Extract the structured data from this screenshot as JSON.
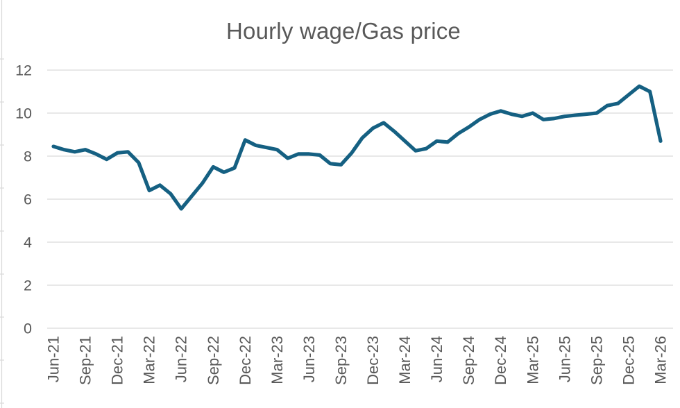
{
  "title": "Hourly wage/Gas price",
  "colors": {
    "line": "#156082",
    "grid": "#d9d9d9",
    "axis_text": "#595959",
    "background": "#ffffff",
    "edge_artifact": "#d9d9d9"
  },
  "chart_data": {
    "type": "line",
    "title": "Hourly wage/Gas price",
    "xlabel": "",
    "ylabel": "",
    "legend": "none",
    "grid": "horizontal",
    "ylim": [
      0,
      12
    ],
    "yticks": [
      0,
      2,
      4,
      6,
      8,
      10,
      12
    ],
    "x_tick_every": 3,
    "x_tick_labels": [
      "Jun-21",
      "Sep-21",
      "Dec-21",
      "Mar-22",
      "Jun-22",
      "Sep-22",
      "Dec-22",
      "Mar-23",
      "Jun-23",
      "Sep-23",
      "Dec-23",
      "Mar-24",
      "Jun-24",
      "Sep-24",
      "Dec-24",
      "Mar-25",
      "Jun-25",
      "Sep-25",
      "Dec-25",
      "Mar-26"
    ],
    "x": [
      "Jun-21",
      "Jul-21",
      "Aug-21",
      "Sep-21",
      "Oct-21",
      "Nov-21",
      "Dec-21",
      "Jan-22",
      "Feb-22",
      "Mar-22",
      "Apr-22",
      "May-22",
      "Jun-22",
      "Jul-22",
      "Aug-22",
      "Sep-22",
      "Oct-22",
      "Nov-22",
      "Dec-22",
      "Jan-23",
      "Feb-23",
      "Mar-23",
      "Apr-23",
      "May-23",
      "Jun-23",
      "Jul-23",
      "Aug-23",
      "Sep-23",
      "Oct-23",
      "Nov-23",
      "Dec-23",
      "Jan-24",
      "Feb-24",
      "Mar-24",
      "Apr-24",
      "May-24",
      "Jun-24",
      "Jul-24",
      "Aug-24",
      "Sep-24",
      "Oct-24",
      "Nov-24",
      "Dec-24",
      "Jan-25",
      "Feb-25",
      "Mar-25",
      "Apr-25",
      "May-25",
      "Jun-25",
      "Jul-25",
      "Aug-25",
      "Sep-25",
      "Oct-25",
      "Nov-25",
      "Dec-25",
      "Jan-26",
      "Feb-26",
      "Mar-26"
    ],
    "series": [
      {
        "name": "Hourly wage/Gas price",
        "values": [
          8.45,
          8.3,
          8.2,
          8.3,
          8.1,
          7.85,
          8.15,
          8.2,
          7.7,
          6.4,
          6.65,
          6.25,
          5.55,
          6.15,
          6.75,
          7.5,
          7.25,
          7.45,
          8.75,
          8.5,
          8.4,
          8.3,
          7.9,
          8.1,
          8.1,
          8.05,
          7.65,
          7.6,
          8.15,
          8.85,
          9.3,
          9.55,
          9.15,
          8.7,
          8.25,
          8.35,
          8.7,
          8.65,
          9.05,
          9.35,
          9.7,
          9.95,
          10.1,
          9.95,
          9.85,
          10.0,
          9.7,
          9.75,
          9.85,
          9.9,
          9.95,
          10.0,
          10.35,
          10.45,
          10.85,
          11.25,
          11.0,
          8.7
        ]
      }
    ]
  }
}
